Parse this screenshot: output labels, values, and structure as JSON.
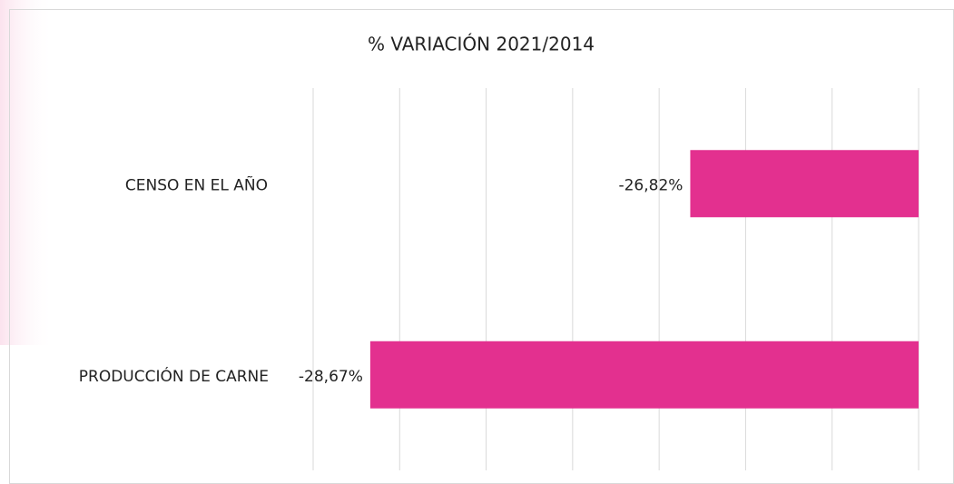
{
  "chart_data": {
    "type": "hbar",
    "title": "% VARIACIÓN 2021/2014",
    "categories": [
      "CENSO EN EL AÑO",
      "PRODUCCIÓN DE CARNE"
    ],
    "values": [
      -26.82,
      -28.67
    ],
    "value_labels": [
      "-26,82%",
      "-28,67%"
    ],
    "color": "#e3308f",
    "xlim": [
      -29,
      -25.5
    ],
    "xticks": [
      -29,
      -28.5,
      -28,
      -27.5,
      -27,
      -26.5,
      -26,
      -25.5
    ],
    "grid": true
  }
}
